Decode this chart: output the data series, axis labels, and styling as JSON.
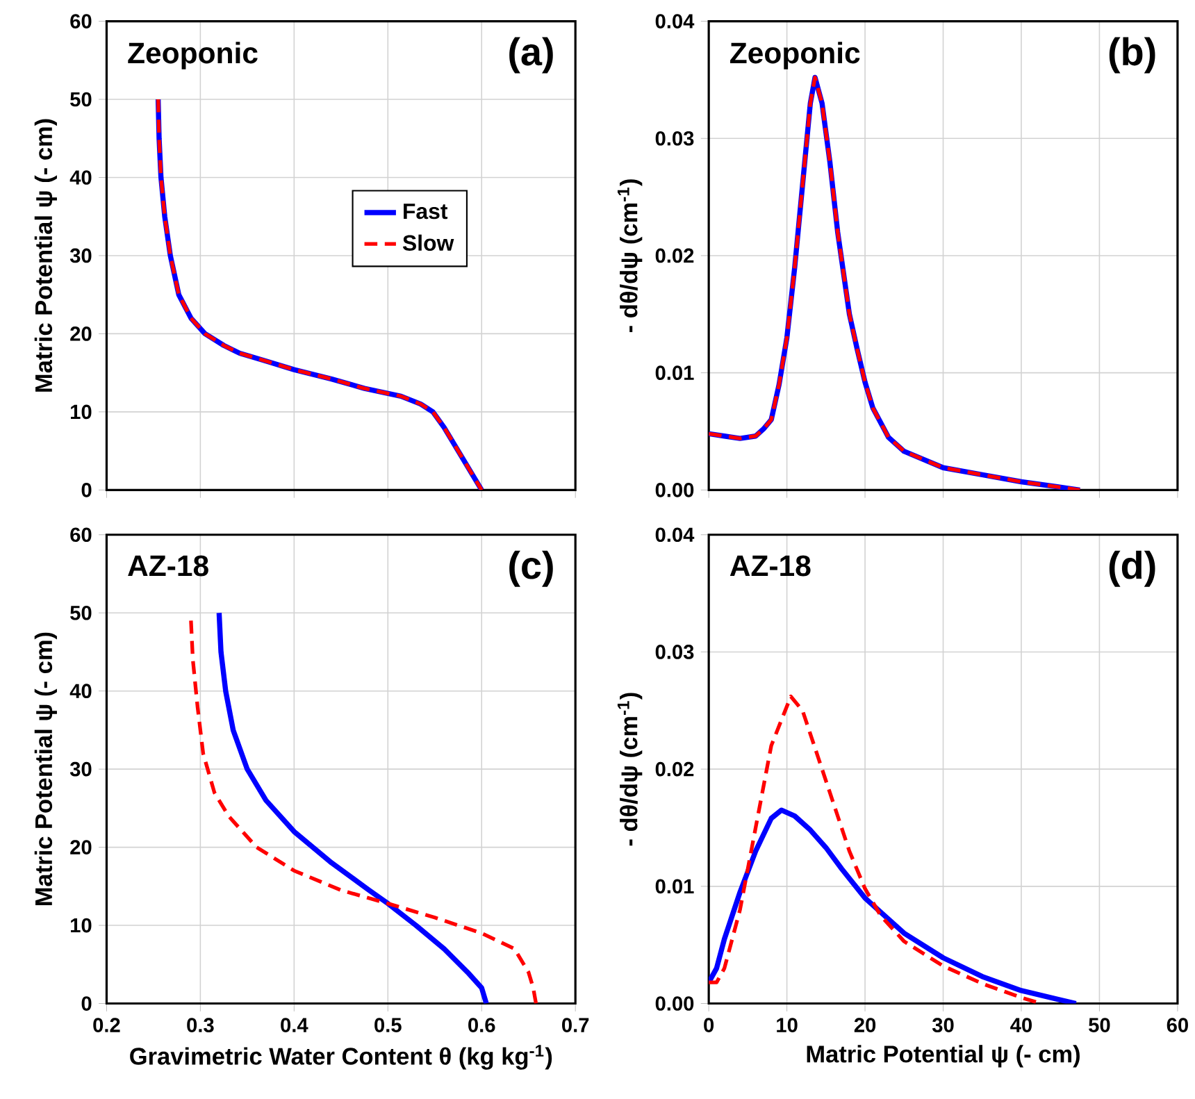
{
  "chart_data": [
    {
      "type": "line",
      "title": "Zeoponic",
      "annotations": [
        "(a)"
      ],
      "ylabel": "Matric Potential ψ (- cm)",
      "xlim": [
        0.2,
        0.7
      ],
      "xticks": [
        0.2,
        0.3,
        0.4,
        0.5,
        0.6,
        0.7
      ],
      "ylim": [
        0,
        60
      ],
      "yticks": [
        0,
        10,
        20,
        30,
        40,
        50,
        60
      ],
      "tick_labels": "y",
      "grid": true,
      "legend": "right",
      "series": [
        {
          "name": "Fast",
          "color": "#0000ff",
          "line_style": "solid",
          "x": [
            0.255,
            0.256,
            0.258,
            0.262,
            0.268,
            0.277,
            0.29,
            0.305,
            0.325,
            0.342,
            0.37,
            0.4,
            0.44,
            0.475,
            0.514,
            0.535,
            0.548,
            0.56,
            0.575,
            0.6
          ],
          "values": [
            50,
            45,
            40,
            35,
            30,
            25,
            22,
            20,
            18.5,
            17.5,
            16.5,
            15.4,
            14.2,
            13,
            12,
            11,
            10,
            8,
            5,
            0
          ]
        },
        {
          "name": "Slow",
          "color": "#ff0000",
          "line_style": "dashed",
          "x": [
            0.255,
            0.256,
            0.258,
            0.262,
            0.268,
            0.277,
            0.29,
            0.305,
            0.325,
            0.342,
            0.37,
            0.4,
            0.44,
            0.475,
            0.514,
            0.535,
            0.548,
            0.56,
            0.575,
            0.6
          ],
          "values": [
            50,
            45,
            40,
            35,
            30,
            25,
            22,
            20,
            18.5,
            17.5,
            16.5,
            15.4,
            14.2,
            13,
            12,
            11,
            10,
            8,
            5,
            0
          ]
        }
      ]
    },
    {
      "type": "line",
      "title": "Zeoponic",
      "annotations": [
        "(b)"
      ],
      "ylabel": "- dθ/dψ (cm$^{-1}$)",
      "xlim": [
        0,
        60
      ],
      "xticks": [
        0,
        10,
        20,
        30,
        40,
        50,
        60
      ],
      "ylim": [
        0,
        0.04
      ],
      "yticks": [
        {
          "value": 0,
          "label": "0.00"
        },
        {
          "value": 0.01,
          "label": "0.01"
        },
        {
          "value": 0.02,
          "label": "0.02"
        },
        {
          "value": 0.03,
          "label": "0.03"
        },
        {
          "value": 0.04,
          "label": "0.04"
        }
      ],
      "tick_labels": "y",
      "grid": true,
      "series": [
        {
          "color": "#0000ff",
          "line_style": "solid",
          "x": [
            0,
            2,
            4,
            6,
            7,
            8,
            9,
            10,
            11,
            12,
            13,
            13.6,
            14.5,
            15.5,
            16.5,
            18,
            19,
            20,
            21,
            23,
            25,
            30,
            35,
            40,
            47.5
          ],
          "values": [
            0.0048,
            0.0046,
            0.0044,
            0.0046,
            0.0052,
            0.006,
            0.009,
            0.013,
            0.019,
            0.026,
            0.033,
            0.0352,
            0.033,
            0.028,
            0.022,
            0.015,
            0.012,
            0.0092,
            0.007,
            0.0045,
            0.0033,
            0.0019,
            0.0013,
            0.0007,
            0
          ]
        },
        {
          "color": "#ff0000",
          "line_style": "dashed",
          "x": [
            0,
            2,
            4,
            6,
            7,
            8,
            9,
            10,
            11,
            12,
            13,
            13.6,
            14.5,
            15.5,
            16.5,
            18,
            19,
            20,
            21,
            23,
            25,
            30,
            35,
            40,
            47.5
          ],
          "values": [
            0.0048,
            0.0046,
            0.0044,
            0.0046,
            0.0052,
            0.006,
            0.009,
            0.013,
            0.019,
            0.026,
            0.033,
            0.0352,
            0.033,
            0.028,
            0.022,
            0.015,
            0.012,
            0.0092,
            0.007,
            0.0045,
            0.0033,
            0.0019,
            0.0013,
            0.0007,
            0
          ]
        }
      ]
    },
    {
      "type": "line",
      "title": "AZ-18",
      "annotations": [
        "(c)"
      ],
      "xlabel": "Gravimetric Water Content θ (kg kg$^{-1}$)",
      "ylabel": "Matric Potential ψ (- cm)",
      "xlim": [
        0.2,
        0.7
      ],
      "xticks": [
        0.2,
        0.3,
        0.4,
        0.5,
        0.6,
        0.7
      ],
      "ylim": [
        0,
        60
      ],
      "yticks": [
        0,
        10,
        20,
        30,
        40,
        50,
        60
      ],
      "grid": true,
      "series": [
        {
          "color": "#0000ff",
          "line_style": "solid",
          "x": [
            0.32,
            0.322,
            0.327,
            0.335,
            0.35,
            0.37,
            0.4,
            0.44,
            0.48,
            0.5,
            0.53,
            0.56,
            0.585,
            0.6,
            0.605
          ],
          "values": [
            50,
            45,
            40,
            35,
            30,
            26,
            22,
            18,
            14.5,
            12.8,
            10,
            7,
            4,
            2,
            0
          ]
        },
        {
          "color": "#ff0000",
          "line_style": "dashed",
          "x": [
            0.29,
            0.292,
            0.297,
            0.303,
            0.315,
            0.33,
            0.36,
            0.4,
            0.45,
            0.5,
            0.55,
            0.6,
            0.635,
            0.65,
            0.655,
            0.658
          ],
          "values": [
            49,
            44,
            38,
            32,
            27,
            24,
            20,
            17,
            14.5,
            12.8,
            11,
            9,
            7,
            4,
            2,
            0
          ]
        }
      ]
    },
    {
      "type": "line",
      "title": "AZ-18",
      "annotations": [
        "(d)"
      ],
      "xlabel": "Matric Potential ψ (- cm)",
      "ylabel": "- dθ/dψ (cm$^{-1}$)",
      "xlim": [
        0,
        60
      ],
      "xticks": [
        0,
        10,
        20,
        30,
        40,
        50,
        60
      ],
      "ylim": [
        0,
        0.04
      ],
      "yticks": [
        {
          "value": 0,
          "label": "0.00"
        },
        {
          "value": 0.01,
          "label": "0.01"
        },
        {
          "value": 0.02,
          "label": "0.02"
        },
        {
          "value": 0.03,
          "label": "0.03"
        },
        {
          "value": 0.04,
          "label": "0.04"
        }
      ],
      "grid": true,
      "series": [
        {
          "color": "#0000ff",
          "line_style": "solid",
          "x": [
            0,
            1,
            2,
            4,
            6,
            8,
            9.3,
            11,
            13,
            15,
            17,
            20,
            25,
            30,
            35,
            40,
            45,
            47
          ],
          "values": [
            0.0018,
            0.003,
            0.0055,
            0.0095,
            0.013,
            0.0158,
            0.0165,
            0.016,
            0.0148,
            0.0133,
            0.0115,
            0.009,
            0.006,
            0.0039,
            0.0023,
            0.0011,
            0.0003,
            0
          ]
        },
        {
          "color": "#ff0000",
          "line_style": "dashed",
          "x": [
            0,
            1,
            2,
            4,
            6,
            8,
            10.5,
            12,
            14,
            16,
            18,
            20,
            22,
            25,
            30,
            35,
            40,
            42.5
          ],
          "values": [
            0.0018,
            0.0018,
            0.003,
            0.008,
            0.015,
            0.022,
            0.0262,
            0.025,
            0.021,
            0.017,
            0.013,
            0.0098,
            0.0075,
            0.0053,
            0.0032,
            0.0017,
            0.0005,
            0
          ]
        }
      ]
    }
  ]
}
